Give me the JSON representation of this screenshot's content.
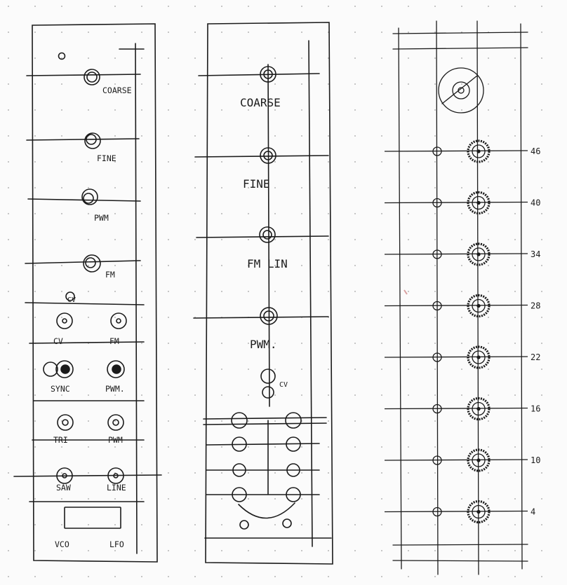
{
  "colors": {
    "ink": "#1b1b1b",
    "dot": "#b5b5b5",
    "paper": "#fbfbfb",
    "mark": "#d9a0a0"
  },
  "panel1": {
    "knobs": [
      "COARSE",
      "FINE",
      "PWM",
      "FM"
    ],
    "sub_label": "CV",
    "jacks": [
      [
        "CV",
        "FM"
      ],
      [
        "SYNC",
        "PWM."
      ],
      [
        "TRI",
        "PWM"
      ],
      [
        "SAW",
        "LINE"
      ]
    ],
    "switch": {
      "left": "VCO",
      "right": "LFO"
    }
  },
  "panel2": {
    "knobs": [
      "COARSE",
      "FINE",
      "FM LIN",
      "PWM."
    ],
    "small_jack_label": "CV"
  },
  "panel3": {
    "row_labels": [
      "46",
      "40",
      "34",
      "28",
      "22",
      "16",
      "10",
      "4"
    ]
  }
}
